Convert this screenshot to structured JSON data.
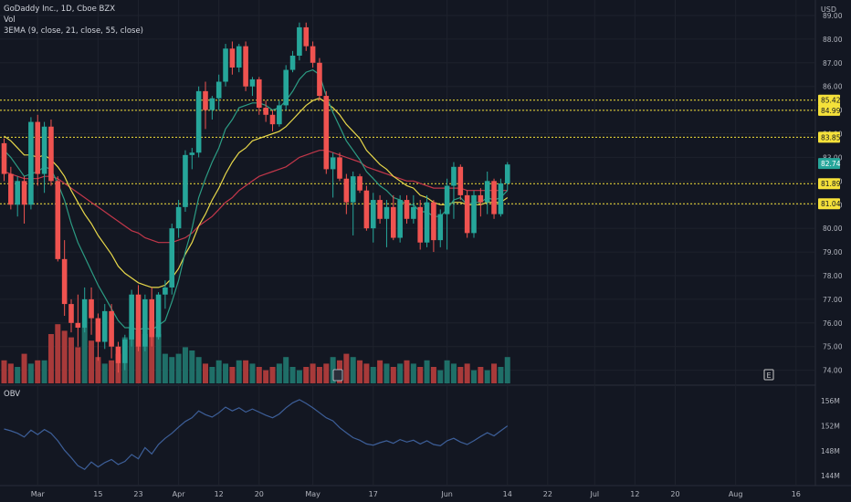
{
  "legend": {
    "title": "GoDaddy Inc., 1D, Cboe BZX",
    "vol": "Vol",
    "ema": "3EMA (9, close, 21, close, 55, close)",
    "obv": "OBV"
  },
  "chart_data": {
    "type": "candlestick",
    "price_unit": "USD",
    "ylim": [
      73.6,
      89.5
    ],
    "price_ticks": [
      "74.00",
      "75.00",
      "76.00",
      "77.00",
      "78.00",
      "79.00",
      "80.00",
      "81.00",
      "82.00",
      "83.00",
      "84.00",
      "85.00",
      "86.00",
      "87.00",
      "88.00",
      "89.00"
    ],
    "time_ticks": [
      {
        "i": 5,
        "label": "Mar"
      },
      {
        "i": 14,
        "label": "15"
      },
      {
        "i": 20,
        "label": "23"
      },
      {
        "i": 26,
        "label": "Apr"
      },
      {
        "i": 32,
        "label": "12"
      },
      {
        "i": 38,
        "label": "20"
      },
      {
        "i": 46,
        "label": "May"
      },
      {
        "i": 55,
        "label": "17"
      },
      {
        "i": 66,
        "label": "Jun"
      },
      {
        "i": 75,
        "label": "14"
      },
      {
        "i": 81,
        "label": "22"
      },
      {
        "i": 88,
        "label": "Jul"
      },
      {
        "i": 94,
        "label": "12"
      },
      {
        "i": 100,
        "label": "20"
      },
      {
        "i": 109,
        "label": "Aug"
      },
      {
        "i": 118,
        "label": "16"
      }
    ],
    "levels": [
      {
        "value": 85.42,
        "label": "85.42"
      },
      {
        "value": 84.99,
        "label": "84.99"
      },
      {
        "value": 83.85,
        "label": "83.85"
      },
      {
        "value": 81.89,
        "label": "81.89"
      },
      {
        "value": 81.04,
        "label": "81.04"
      }
    ],
    "last_price": {
      "value": 82.74,
      "label": "82.74"
    },
    "candles": [
      [
        83.6,
        83.8,
        82.0,
        82.3
      ],
      [
        82.3,
        82.6,
        80.8,
        81.0
      ],
      [
        81.0,
        82.2,
        80.5,
        82.0
      ],
      [
        82.0,
        82.2,
        80.2,
        81.0
      ],
      [
        81.0,
        84.7,
        80.8,
        84.5
      ],
      [
        84.5,
        84.8,
        81.8,
        82.3
      ],
      [
        82.3,
        84.5,
        81.5,
        84.3
      ],
      [
        84.3,
        84.6,
        81.8,
        82.0
      ],
      [
        82.0,
        82.2,
        78.6,
        78.7
      ],
      [
        78.7,
        79.5,
        76.3,
        76.8
      ],
      [
        76.8,
        77.0,
        75.6,
        76.0
      ],
      [
        76.0,
        77.2,
        75.0,
        75.8
      ],
      [
        75.8,
        77.5,
        75.6,
        77.0
      ],
      [
        77.0,
        77.5,
        75.5,
        76.2
      ],
      [
        76.2,
        76.4,
        74.4,
        75.2
      ],
      [
        75.2,
        76.8,
        74.9,
        76.5
      ],
      [
        76.5,
        76.8,
        74.5,
        75.0
      ],
      [
        75.0,
        75.2,
        73.9,
        74.3
      ],
      [
        74.3,
        75.5,
        74.0,
        75.3
      ],
      [
        75.3,
        77.4,
        75.0,
        77.2
      ],
      [
        77.2,
        77.6,
        74.8,
        75.0
      ],
      [
        75.0,
        77.2,
        74.8,
        77.0
      ],
      [
        77.0,
        77.5,
        75.0,
        75.4
      ],
      [
        75.4,
        77.3,
        75.3,
        77.2
      ],
      [
        77.2,
        77.8,
        76.6,
        77.5
      ],
      [
        77.5,
        80.2,
        77.2,
        80.0
      ],
      [
        80.0,
        81.2,
        79.6,
        80.9
      ],
      [
        80.9,
        83.3,
        80.7,
        83.1
      ],
      [
        83.1,
        83.4,
        82.5,
        83.2
      ],
      [
        83.2,
        86.0,
        83.0,
        85.8
      ],
      [
        85.8,
        86.2,
        84.2,
        85.0
      ],
      [
        85.0,
        85.6,
        84.6,
        85.5
      ],
      [
        85.5,
        86.5,
        85.0,
        86.2
      ],
      [
        86.2,
        87.8,
        86.0,
        87.6
      ],
      [
        87.6,
        87.9,
        86.5,
        86.8
      ],
      [
        86.8,
        87.8,
        86.6,
        87.7
      ],
      [
        87.7,
        87.9,
        85.8,
        86.0
      ],
      [
        86.0,
        86.4,
        85.6,
        86.3
      ],
      [
        86.3,
        86.4,
        84.8,
        85.1
      ],
      [
        85.1,
        85.4,
        84.5,
        84.8
      ],
      [
        84.8,
        85.0,
        84.1,
        84.4
      ],
      [
        84.4,
        85.4,
        84.3,
        85.2
      ],
      [
        85.2,
        86.9,
        85.0,
        86.7
      ],
      [
        86.7,
        87.5,
        86.6,
        87.3
      ],
      [
        87.3,
        88.7,
        87.1,
        88.5
      ],
      [
        88.5,
        88.7,
        87.5,
        87.7
      ],
      [
        87.7,
        87.9,
        86.8,
        87.0
      ],
      [
        87.0,
        87.2,
        85.4,
        85.6
      ],
      [
        85.6,
        85.8,
        82.3,
        82.5
      ],
      [
        82.5,
        83.2,
        81.3,
        83.0
      ],
      [
        83.0,
        83.2,
        82.0,
        82.1
      ],
      [
        82.1,
        82.3,
        80.6,
        81.1
      ],
      [
        81.1,
        82.4,
        79.7,
        82.2
      ],
      [
        82.2,
        82.3,
        81.5,
        81.6
      ],
      [
        81.6,
        81.8,
        79.9,
        80.0
      ],
      [
        80.0,
        81.5,
        79.4,
        81.2
      ],
      [
        81.2,
        81.4,
        80.2,
        80.4
      ],
      [
        80.4,
        81.2,
        79.2,
        80.9
      ],
      [
        80.9,
        81.4,
        79.5,
        79.6
      ],
      [
        79.6,
        81.4,
        79.4,
        81.2
      ],
      [
        81.2,
        81.4,
        80.2,
        80.4
      ],
      [
        80.4,
        81.4,
        80.2,
        80.9
      ],
      [
        80.9,
        81.2,
        79.1,
        79.4
      ],
      [
        79.4,
        81.4,
        79.2,
        81.1
      ],
      [
        81.1,
        81.2,
        79.0,
        79.5
      ],
      [
        79.5,
        80.8,
        79.2,
        80.6
      ],
      [
        80.6,
        82.1,
        79.1,
        81.8
      ],
      [
        81.8,
        82.8,
        80.4,
        82.6
      ],
      [
        82.6,
        82.7,
        81.2,
        81.4
      ],
      [
        81.4,
        81.6,
        79.6,
        79.8
      ],
      [
        79.8,
        81.6,
        79.6,
        81.4
      ],
      [
        81.4,
        81.7,
        80.5,
        81.1
      ],
      [
        81.1,
        82.4,
        80.6,
        82.0
      ],
      [
        82.0,
        82.1,
        80.4,
        80.6
      ],
      [
        80.6,
        82.1,
        80.5,
        81.9
      ],
      [
        81.9,
        82.8,
        81.6,
        82.7
      ]
    ],
    "ema9": [
      83.3,
      83.0,
      82.6,
      82.2,
      82.3,
      82.4,
      82.6,
      82.5,
      81.9,
      81.2,
      80.2,
      79.4,
      78.8,
      78.2,
      77.6,
      77.1,
      76.6,
      76.1,
      75.8,
      75.8,
      75.7,
      75.8,
      75.7,
      75.9,
      76.1,
      76.9,
      77.8,
      79.0,
      80.0,
      81.3,
      82.1,
      82.8,
      83.4,
      84.2,
      84.6,
      85.1,
      85.2,
      85.3,
      85.3,
      85.2,
      85.0,
      85.1,
      85.4,
      85.8,
      86.3,
      86.6,
      86.7,
      86.5,
      85.6,
      84.9,
      84.3,
      83.7,
      83.3,
      82.9,
      82.4,
      82.1,
      81.8,
      81.6,
      81.3,
      81.2,
      81.0,
      81.0,
      80.7,
      80.7,
      80.5,
      80.5,
      80.8,
      81.2,
      81.3,
      81.0,
      81.1,
      81.1,
      81.3,
      81.2,
      81.3,
      81.6
    ],
    "ema21": [
      83.9,
      83.7,
      83.4,
      83.1,
      83.1,
      83.0,
      83.1,
      82.9,
      82.6,
      82.2,
      81.6,
      81.1,
      80.6,
      80.2,
      79.7,
      79.3,
      78.9,
      78.4,
      78.1,
      77.9,
      77.7,
      77.6,
      77.5,
      77.5,
      77.6,
      77.9,
      78.3,
      78.9,
      79.4,
      80.1,
      80.6,
      81.2,
      81.7,
      82.3,
      82.8,
      83.2,
      83.4,
      83.7,
      83.8,
      83.9,
      84.0,
      84.1,
      84.3,
      84.6,
      84.9,
      85.2,
      85.4,
      85.5,
      85.3,
      85.1,
      84.8,
      84.4,
      84.1,
      83.8,
      83.3,
      83.0,
      82.7,
      82.5,
      82.2,
      82.0,
      81.8,
      81.7,
      81.4,
      81.3,
      81.1,
      81.0,
      81.0,
      81.1,
      81.1,
      81.0,
      81.0,
      81.0,
      81.1,
      81.1,
      81.1,
      81.3
    ],
    "ema55": [
      82.4,
      82.3,
      82.2,
      82.1,
      82.1,
      82.1,
      82.2,
      82.2,
      82.1,
      81.9,
      81.7,
      81.5,
      81.3,
      81.1,
      80.9,
      80.7,
      80.5,
      80.3,
      80.1,
      79.9,
      79.8,
      79.6,
      79.5,
      79.4,
      79.4,
      79.4,
      79.5,
      79.6,
      79.8,
      80.1,
      80.3,
      80.5,
      80.8,
      81.1,
      81.3,
      81.6,
      81.8,
      82.0,
      82.2,
      82.3,
      82.4,
      82.5,
      82.6,
      82.8,
      83.0,
      83.1,
      83.2,
      83.3,
      83.3,
      83.2,
      83.1,
      83.0,
      82.9,
      82.8,
      82.6,
      82.5,
      82.4,
      82.3,
      82.2,
      82.1,
      82.0,
      82.0,
      81.9,
      81.8,
      81.7,
      81.7,
      81.7,
      81.7,
      81.7,
      81.6,
      81.6,
      81.6,
      81.6,
      81.6,
      81.6,
      81.6
    ],
    "volume": [
      7,
      6,
      5,
      9,
      6,
      7,
      7,
      15,
      18,
      16,
      14,
      11,
      17,
      13,
      8,
      6,
      7,
      9,
      14,
      17,
      16,
      15,
      19,
      15,
      9,
      8,
      9,
      11,
      10,
      8,
      6,
      5,
      7,
      6,
      5,
      7,
      7,
      6,
      5,
      4,
      5,
      6,
      8,
      5,
      4,
      5,
      6,
      5,
      6,
      8,
      7,
      9,
      8,
      7,
      6,
      5,
      7,
      6,
      5,
      6,
      7,
      6,
      5,
      7,
      5,
      4,
      7,
      6,
      5,
      6,
      4,
      5,
      4,
      6,
      5,
      8
    ],
    "vol_max": 20,
    "obv_ticks": [
      "144M",
      "148M",
      "152M",
      "156M"
    ],
    "obv_ylim": [
      143.0,
      157.5
    ],
    "obv": [
      151.5,
      151.2,
      150.8,
      150.2,
      151.3,
      150.6,
      151.4,
      150.8,
      149.6,
      148.1,
      146.9,
      145.6,
      145.0,
      146.2,
      145.4,
      146.1,
      146.6,
      145.8,
      146.3,
      147.4,
      146.7,
      148.5,
      147.5,
      149.0,
      150.0,
      150.8,
      151.8,
      152.7,
      153.3,
      154.4,
      153.8,
      153.4,
      154.1,
      155.0,
      154.4,
      154.9,
      154.2,
      154.7,
      154.2,
      153.7,
      153.3,
      153.9,
      154.9,
      155.7,
      156.2,
      155.6,
      154.9,
      154.1,
      153.3,
      152.8,
      151.7,
      150.9,
      150.1,
      149.7,
      149.1,
      148.9,
      149.3,
      149.6,
      149.2,
      149.8,
      149.4,
      149.7,
      149.1,
      149.6,
      149.0,
      148.8,
      149.6,
      150.0,
      149.4,
      149.0,
      149.6,
      150.3,
      150.9,
      150.4,
      151.2,
      152.0
    ]
  }
}
